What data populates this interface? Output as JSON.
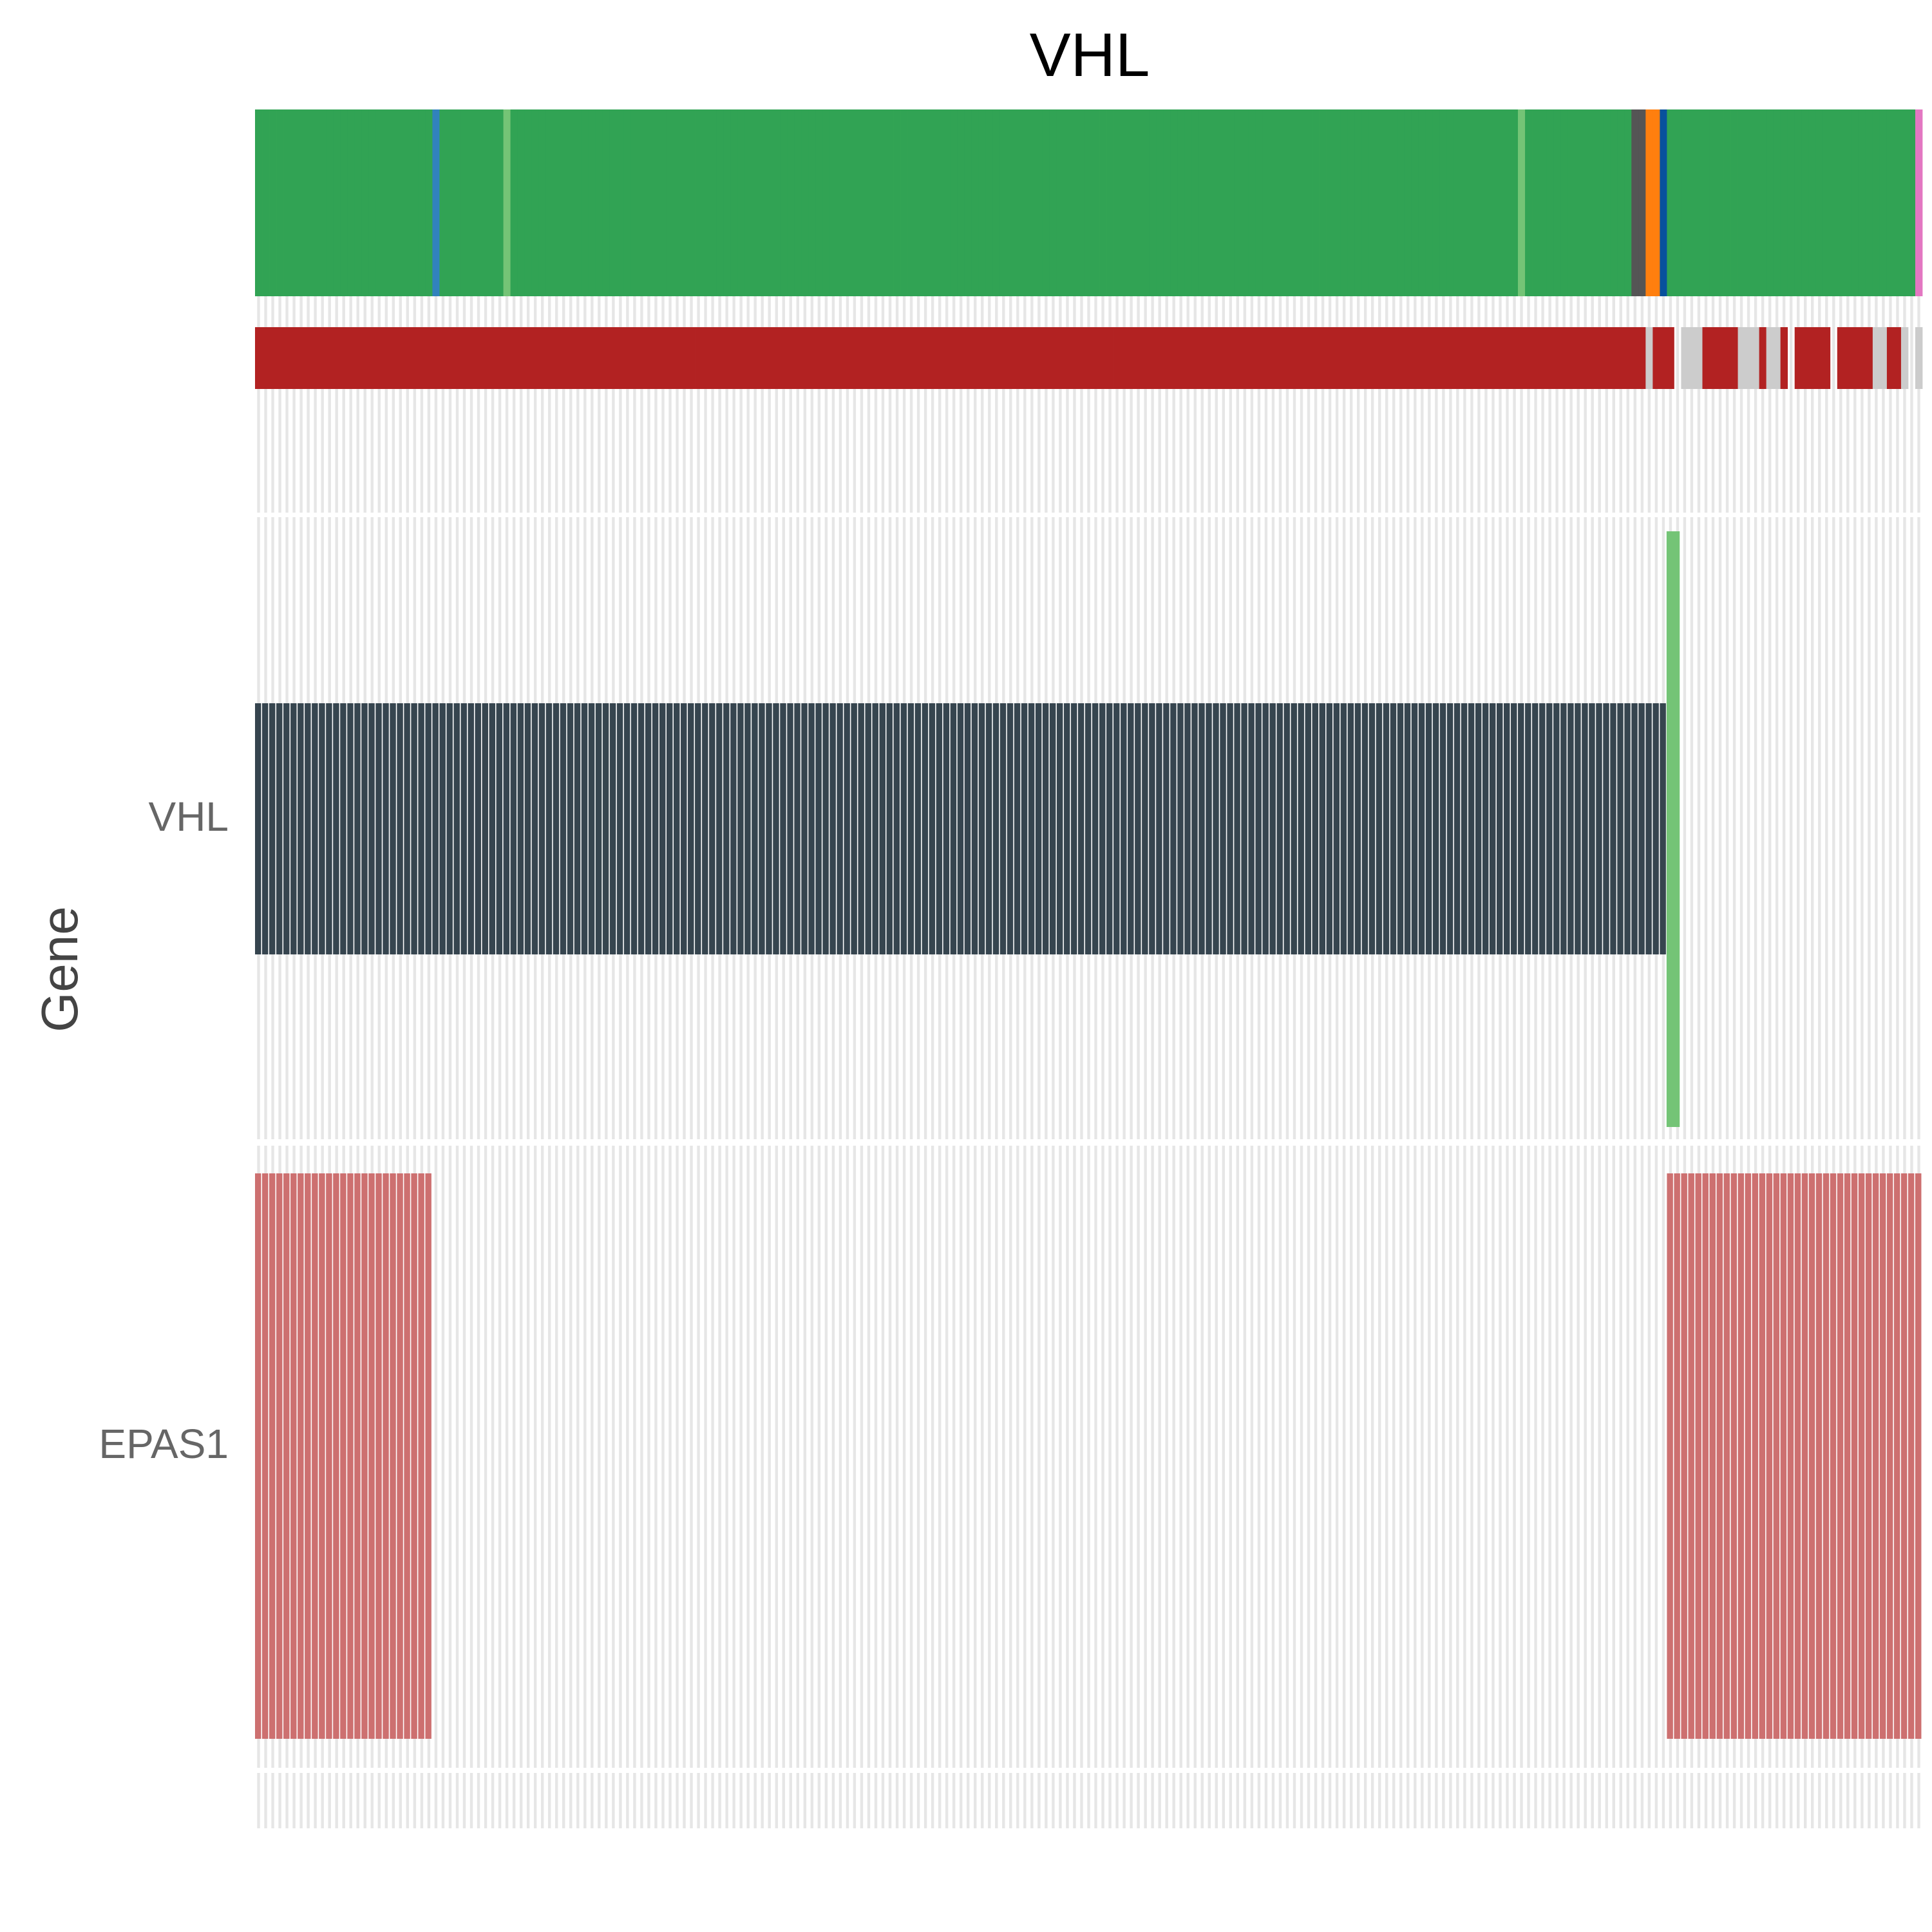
{
  "chart_data": {
    "type": "heatmap",
    "title": "VHL",
    "ylabel": "Gene",
    "xlabel": "",
    "n_samples": 235,
    "genes": [
      "VHL",
      "EPAS1"
    ],
    "colors": {
      "track1_base": "#31a354",
      "track2_base": "#b22222",
      "track2_na": "#cccccc",
      "vhl_alteration": "#36454f",
      "vhl_green_mark": "#74c476",
      "epas1_alteration": "#cd7070",
      "background_line": "#e6e6e6"
    },
    "top_track": {
      "base_color": "#31a354",
      "marks": [
        {
          "sample": 25,
          "color": "#3182bd"
        },
        {
          "sample": 35,
          "color": "#74c476"
        },
        {
          "sample": 178,
          "color": "#74c476"
        },
        {
          "sample": 194,
          "color": "#555555"
        },
        {
          "sample": 195,
          "color": "#555555"
        },
        {
          "sample": 196,
          "color": "#ff7f0e"
        },
        {
          "sample": 197,
          "color": "#ff7f0e"
        },
        {
          "sample": 198,
          "color": "#08519c"
        },
        {
          "sample": 234,
          "color": "#e377c2"
        }
      ]
    },
    "second_track": {
      "base_color": "#b22222",
      "na_samples": [
        196,
        201,
        202,
        203,
        209,
        210,
        211,
        213,
        214,
        228,
        229,
        232,
        234
      ],
      "gap_samples": [
        200,
        216,
        222,
        233
      ]
    },
    "series": [
      {
        "name": "VHL",
        "altered_samples_range": [
          0,
          198
        ],
        "green_mark_sample": 199
      },
      {
        "name": "EPAS1",
        "altered_samples_ranges": [
          [
            0,
            24
          ],
          [
            199,
            234
          ]
        ]
      }
    ]
  }
}
